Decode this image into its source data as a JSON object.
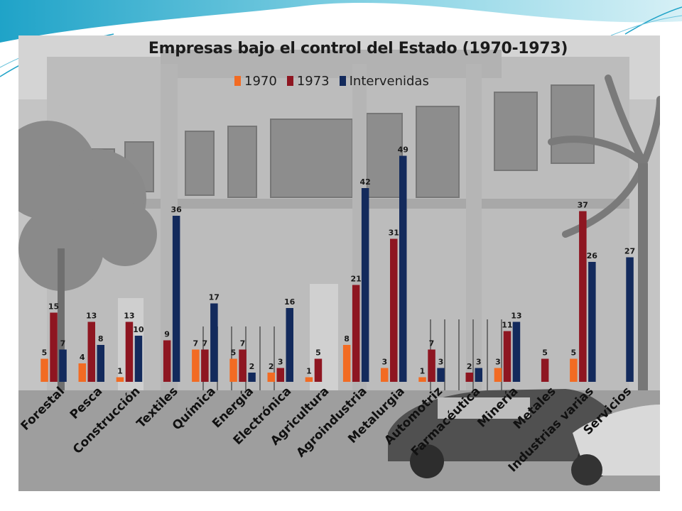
{
  "colors": {
    "1970": "#f26b23",
    "1973": "#8e1621",
    "Intervenidas": "#132a5c",
    "accent_teal": "#1fa3c8"
  },
  "chart_data": {
    "type": "bar",
    "title": "Empresas bajo el control del Estado (1970-1973)",
    "legend_position": "top",
    "grid": false,
    "categories": [
      "Forestal",
      "Pesca",
      "Construcción",
      "Textiles",
      "Química",
      "Energía",
      "Electrónica",
      "Agricultura",
      "Agroindustria",
      "Metalurgia",
      "Automotriz",
      "Farmacéutica",
      "Minería",
      "Metales",
      "Industrias varias",
      "Servicios"
    ],
    "series": [
      {
        "name": "1970",
        "values": [
          5,
          4,
          1,
          null,
          7,
          5,
          2,
          1,
          8,
          3,
          1,
          null,
          3,
          null,
          5,
          null
        ]
      },
      {
        "name": "1973",
        "values": [
          15,
          13,
          13,
          9,
          7,
          7,
          3,
          5,
          21,
          31,
          7,
          2,
          11,
          5,
          37,
          null
        ]
      },
      {
        "name": "Intervenidas",
        "values": [
          7,
          8,
          10,
          36,
          17,
          2,
          16,
          null,
          42,
          49,
          3,
          3,
          13,
          null,
          26,
          27
        ]
      }
    ],
    "ylim": [
      0,
      52
    ]
  }
}
